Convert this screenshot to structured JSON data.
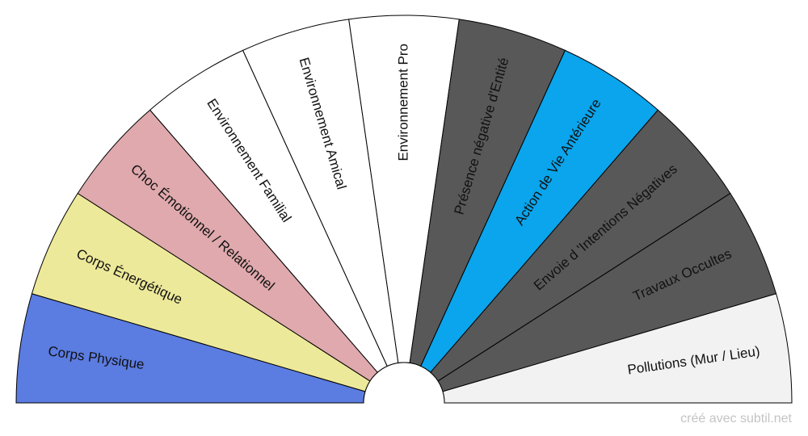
{
  "diagram": {
    "sectors": [
      {
        "label": "Corps Physique",
        "color": "#5b7ce0"
      },
      {
        "label": "Corps Énergétique",
        "color": "#ede99a"
      },
      {
        "label": "Choc Émotionnel / Relationnel",
        "color": "#dfa9ad"
      },
      {
        "label": "Environnement Familial",
        "color": "#ffffff"
      },
      {
        "label": "Environnement  Amical",
        "color": "#ffffff"
      },
      {
        "label": "Environnement Pro",
        "color": "#ffffff"
      },
      {
        "label": "Présence négative d'Entité",
        "color": "#585858"
      },
      {
        "label": "Action de Vie Antérieure",
        "color": "#0aa5ec"
      },
      {
        "label": "Envoie d 'Intentions Négatives",
        "color": "#585858"
      },
      {
        "label": "Travaux Occultes",
        "color": "#585858"
      },
      {
        "label": "Pollutions (Mur / Lieu)",
        "color": "#f2f2f2"
      }
    ]
  },
  "footer": {
    "credit": "créé avec subtil.net"
  }
}
